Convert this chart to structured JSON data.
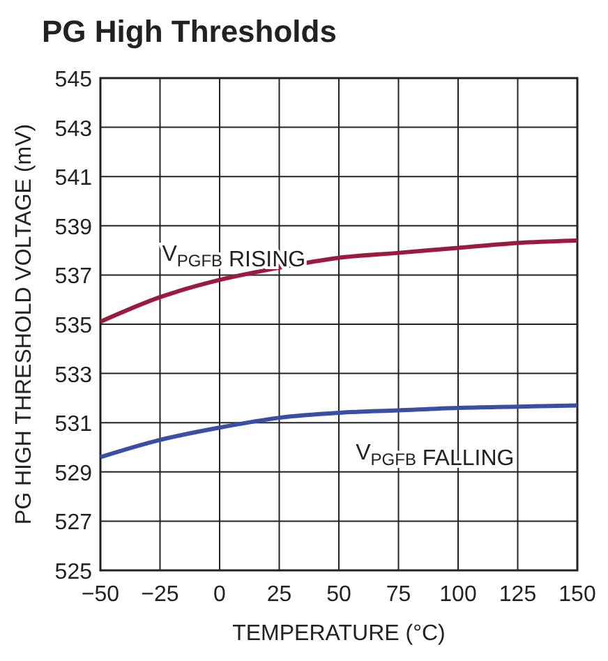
{
  "chart_data": {
    "type": "line",
    "title": "PG High Thresholds",
    "xlabel": "TEMPERATURE (°C)",
    "ylabel": "PG HIGH THRESHOLD VOLTAGE (mV)",
    "x": [
      -50,
      -25,
      0,
      25,
      50,
      75,
      100,
      125,
      150
    ],
    "series": [
      {
        "name": "V$_{PGFB}$ RISING",
        "color": "#9b1b3f",
        "values": [
          535.1,
          536.1,
          536.8,
          537.3,
          537.7,
          537.9,
          538.1,
          538.3,
          538.4
        ]
      },
      {
        "name": "V$_{PGFB}$ FALLING",
        "color": "#3a4fa3",
        "values": [
          529.6,
          530.3,
          530.8,
          531.2,
          531.4,
          531.5,
          531.6,
          531.65,
          531.7
        ]
      }
    ],
    "xlim": [
      -50,
      150
    ],
    "xticks": [
      {
        "value": -50,
        "label": "−50"
      },
      {
        "value": -25,
        "label": "−25"
      },
      0,
      25,
      50,
      75,
      100,
      125,
      150
    ],
    "ylim": [
      525,
      545
    ],
    "yticks": [
      525,
      527,
      529,
      531,
      533,
      535,
      537,
      539,
      541,
      543,
      545
    ],
    "grid": true,
    "marker": "none",
    "line_style": "solid"
  }
}
